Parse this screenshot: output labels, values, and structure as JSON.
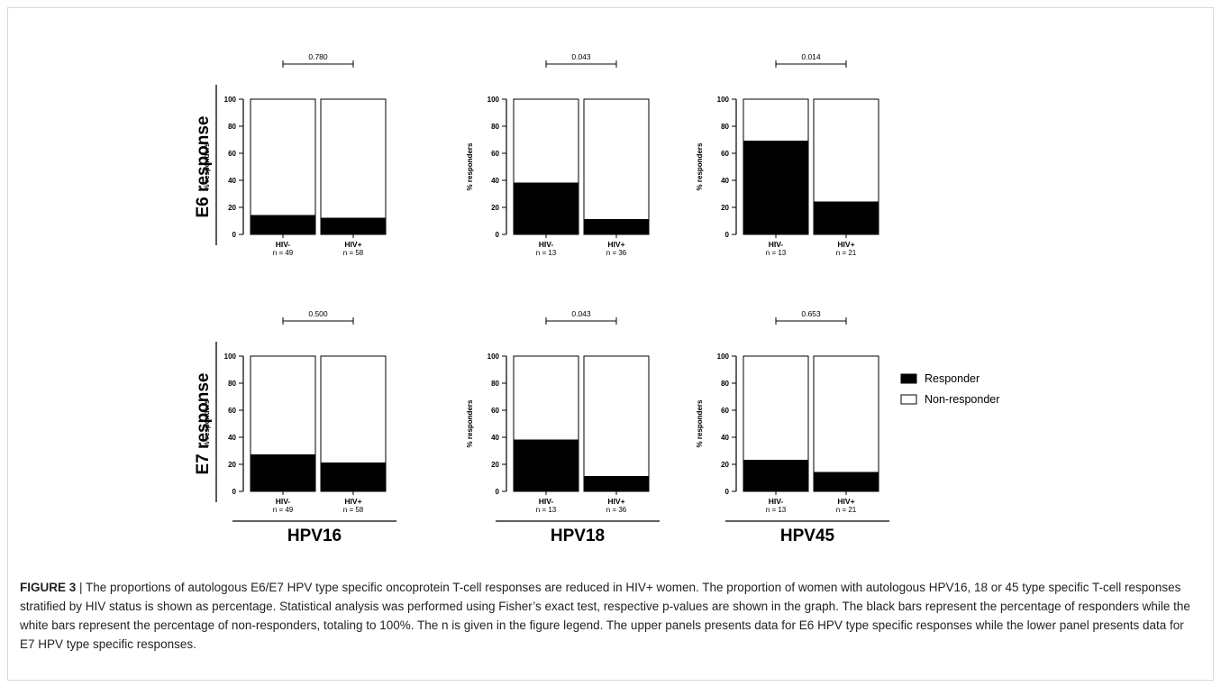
{
  "chart_data": {
    "type": "bar",
    "stacked": true,
    "ylabel": "% responders",
    "ylim": [
      0,
      100
    ],
    "yticks": [
      0,
      20,
      40,
      60,
      80,
      100
    ],
    "rows": [
      {
        "label": "E6 response"
      },
      {
        "label": "E7 response"
      }
    ],
    "columns": [
      {
        "label": "HPV16"
      },
      {
        "label": "HPV18"
      },
      {
        "label": "HPV45"
      }
    ],
    "legend": {
      "position": "right",
      "entries": [
        {
          "label": "Responder",
          "color": "#000000"
        },
        {
          "label": "Non-responder",
          "color": "#ffffff"
        }
      ]
    },
    "panels": [
      {
        "row": 0,
        "col": 0,
        "pvalue": "0.780",
        "groups": [
          {
            "label": "HIV-",
            "n": "n = 49",
            "responder": 14
          },
          {
            "label": "HIV+",
            "n": "n = 58",
            "responder": 12
          }
        ]
      },
      {
        "row": 0,
        "col": 1,
        "pvalue": "0.043",
        "groups": [
          {
            "label": "HIV-",
            "n": "n = 13",
            "responder": 38
          },
          {
            "label": "HIV+",
            "n": "n = 36",
            "responder": 11
          }
        ]
      },
      {
        "row": 0,
        "col": 2,
        "pvalue": "0.014",
        "groups": [
          {
            "label": "HIV-",
            "n": "n = 13",
            "responder": 69
          },
          {
            "label": "HIV+",
            "n": "n = 21",
            "responder": 24
          }
        ]
      },
      {
        "row": 1,
        "col": 0,
        "pvalue": "0.500",
        "groups": [
          {
            "label": "HIV-",
            "n": "n = 49",
            "responder": 27
          },
          {
            "label": "HIV+",
            "n": "n = 58",
            "responder": 21
          }
        ]
      },
      {
        "row": 1,
        "col": 1,
        "pvalue": "0.043",
        "groups": [
          {
            "label": "HIV-",
            "n": "n = 13",
            "responder": 38
          },
          {
            "label": "HIV+",
            "n": "n = 36",
            "responder": 11
          }
        ]
      },
      {
        "row": 1,
        "col": 2,
        "pvalue": "0.653",
        "groups": [
          {
            "label": "HIV-",
            "n": "n = 13",
            "responder": 23
          },
          {
            "label": "HIV+",
            "n": "n = 21",
            "responder": 14
          }
        ]
      }
    ]
  },
  "caption": {
    "label": "FIGURE 3",
    "separator": " | ",
    "text": "The proportions of autologous E6/E7 HPV type specific oncoprotein T-cell responses are reduced in HIV+ women. The proportion of women with autologous HPV16, 18 or 45 type specific T-cell responses stratified by HIV status is shown as percentage. Statistical analysis was performed using Fisher’s exact test, respective p-values are shown in the graph. The black bars represent the percentage of responders while the white bars represent the percentage of non-responders, totaling to 100%. The n is given in the figure legend. The upper panels presents data for E6 HPV type specific responses while the lower panel presents data for E7 HPV type specific responses."
  }
}
